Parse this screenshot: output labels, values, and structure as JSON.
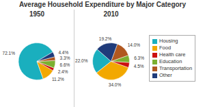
{
  "chart_data": {
    "type": "pie",
    "title": "Average Household Expenditure by Major Category",
    "categories": [
      "Housing",
      "Food",
      "Health care",
      "Education",
      "Transportation",
      "Other"
    ],
    "colors": [
      "#1AAFBE",
      "#F2A800",
      "#CC1010",
      "#7CB030",
      "#B05820",
      "#1F3B7A"
    ],
    "series": [
      {
        "name": "1950",
        "values": [
          72.1,
          11.2,
          2.4,
          6.6,
          3.3,
          4.4
        ],
        "value_labels": [
          "72.1%",
          "11.2%",
          "2.4%",
          "6.6%",
          "3.3%",
          "4.4%"
        ]
      },
      {
        "name": "2010",
        "values": [
          22.0,
          34.0,
          4.5,
          6.3,
          14.0,
          19.2
        ],
        "value_labels": [
          "22.0%",
          "34.0%",
          "4.5%",
          "6.3%",
          "14.0%",
          "19.2%"
        ]
      }
    ],
    "data_labels": true,
    "legend": "right"
  }
}
